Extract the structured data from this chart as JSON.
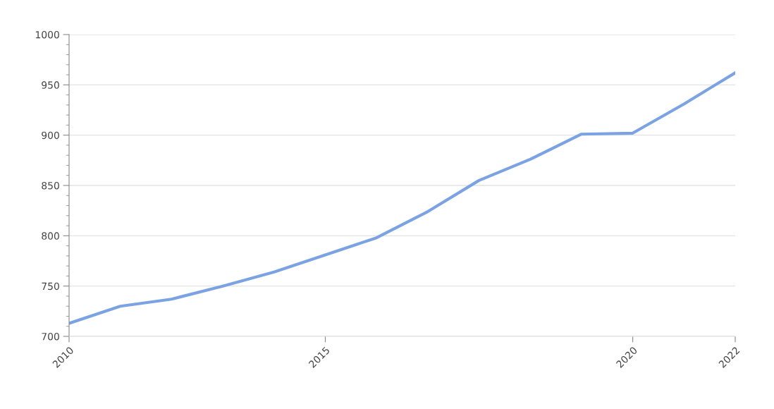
{
  "chart_data": {
    "type": "line",
    "categories": [
      "2010",
      null,
      null,
      null,
      null,
      "2015",
      null,
      null,
      null,
      null,
      null,
      "2020",
      null,
      "2022"
    ],
    "series": [
      {
        "color": "#7ba3e3",
        "values": [
          713,
          730,
          737,
          750,
          764,
          781,
          798,
          824,
          855,
          876,
          901,
          902,
          931,
          962
        ]
      }
    ],
    "ylim": [
      700,
      1000
    ],
    "yticks": [
      700,
      750,
      800,
      850,
      900,
      950,
      1000
    ],
    "grid": "y",
    "legend": false,
    "marker": "none",
    "line_style": "solid"
  }
}
